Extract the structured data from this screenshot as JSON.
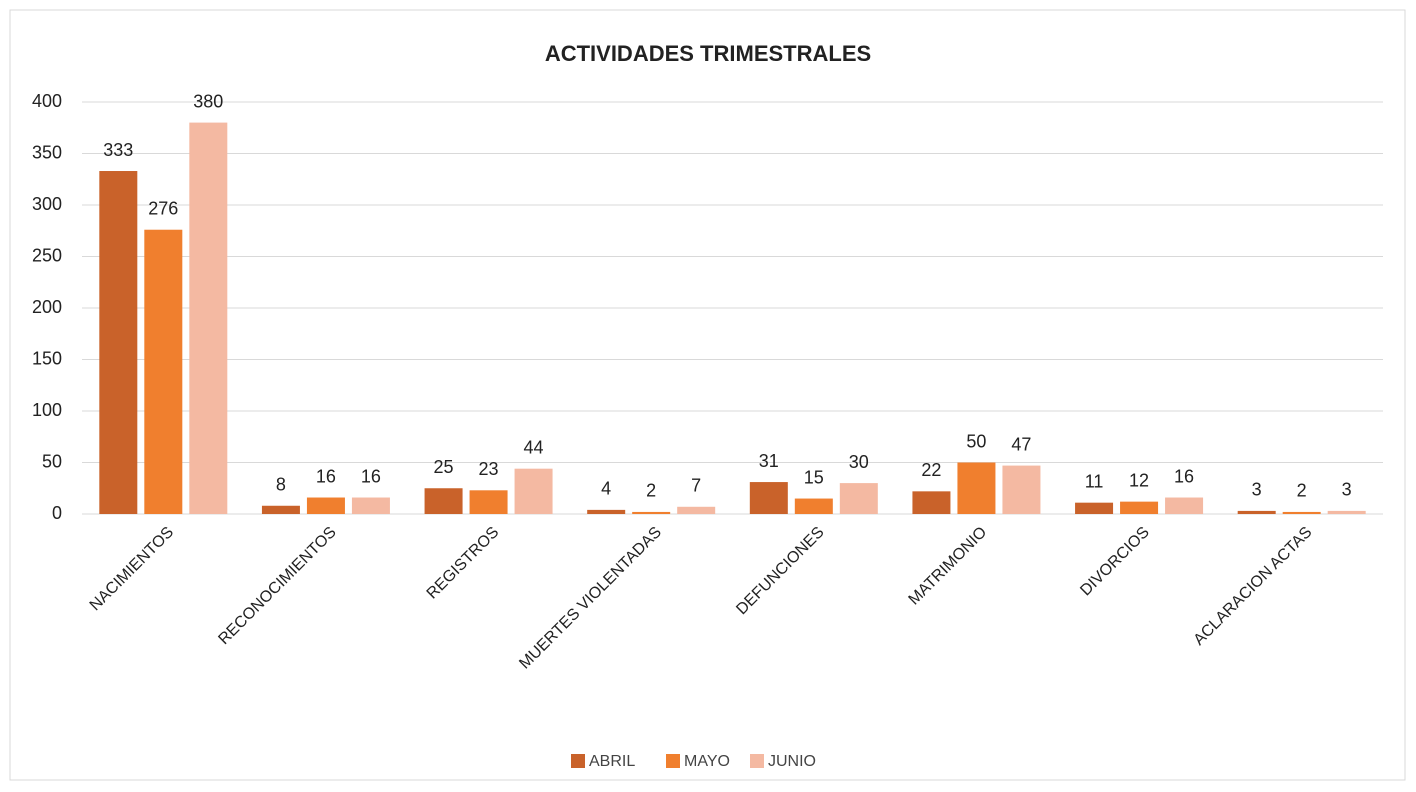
{
  "chart_data": {
    "type": "bar",
    "title": "ACTIVIDADES TRIMESTRALES",
    "categories": [
      "NACIMIENTOS",
      "RECONOCIMIENTOS",
      "REGISTROS",
      "MUERTES VIOLENTADAS",
      "DEFUNCIONES",
      "MATRIMONIO",
      "DIVORCIOS",
      "ACLARACION ACTAS"
    ],
    "series": [
      {
        "name": "ABRIL",
        "color": "#c9622a",
        "values": [
          333,
          8,
          25,
          4,
          31,
          22,
          11,
          3
        ]
      },
      {
        "name": "MAYO",
        "color": "#f07f2e",
        "values": [
          276,
          16,
          23,
          2,
          15,
          50,
          12,
          2
        ]
      },
      {
        "name": "JUNIO",
        "color": "#f4b9a2",
        "values": [
          380,
          16,
          44,
          7,
          30,
          47,
          16,
          3
        ]
      }
    ],
    "ylim": [
      0,
      400
    ],
    "yticks": [
      0,
      50,
      100,
      150,
      200,
      250,
      300,
      350,
      400
    ],
    "grid": true,
    "legend": "bottom"
  }
}
